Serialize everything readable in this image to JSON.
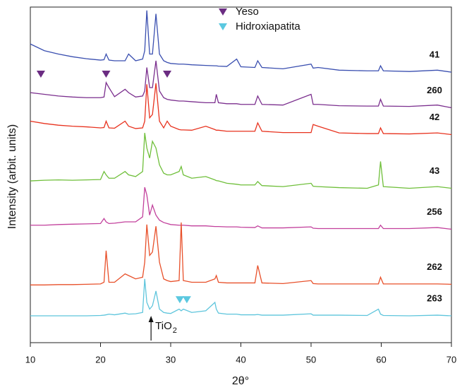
{
  "chart_data": {
    "type": "line",
    "xlabel": "2θ°",
    "ylabel": "Intensity (arbit. units)",
    "xlim": [
      10,
      70
    ],
    "xticks": [
      10,
      20,
      30,
      40,
      50,
      60,
      70
    ],
    "ylim": [
      0,
      100
    ],
    "x": [
      10,
      12,
      14,
      16,
      18,
      20,
      20.5,
      20.8,
      21.2,
      22,
      23.5,
      24,
      25,
      26,
      26.3,
      26.6,
      27,
      27.4,
      27.9,
      28.4,
      29,
      29.5,
      30,
      31.2,
      31.5,
      31.8,
      33,
      35,
      36.3,
      36.5,
      36.8,
      38,
      39.4,
      40,
      42,
      42.4,
      43,
      46,
      50,
      50.3,
      51,
      54,
      58,
      59.6,
      59.9,
      60.3,
      64,
      68,
      70
    ],
    "series": [
      {
        "name": "41",
        "color": "#3a4fb0",
        "values": [
          89,
          87,
          86,
          85.2,
          84.6,
          84.2,
          84.3,
          86,
          84.2,
          84,
          84,
          86,
          84,
          84.5,
          87,
          99,
          86,
          86,
          98,
          86,
          84,
          83.5,
          83.2,
          83,
          83,
          83,
          82.8,
          82.6,
          82.5,
          82.5,
          82.4,
          82.3,
          84.5,
          82.2,
          82,
          84,
          82,
          81.6,
          83,
          81.8,
          82,
          81.2,
          81,
          81,
          82.5,
          81,
          80.8,
          81.2,
          80.6
        ]
      },
      {
        "name": "260",
        "color": "#7b2f8e",
        "values": [
          74.5,
          74,
          73.5,
          73.2,
          73,
          73,
          73.2,
          77.5,
          76,
          73.3,
          75.5,
          74.5,
          73.2,
          73.5,
          75,
          82,
          76,
          76,
          84,
          75,
          73,
          72.5,
          72.3,
          72,
          72,
          72,
          71.8,
          71.5,
          71.5,
          74,
          71.5,
          71.2,
          71.2,
          71,
          71,
          73.5,
          71,
          70.8,
          74,
          71,
          71,
          70.6,
          70.5,
          70.5,
          72.5,
          70.5,
          70.4,
          70.8,
          70
        ]
      },
      {
        "name": "42",
        "color": "#e8321e",
        "values": [
          66,
          65.3,
          64.8,
          64.5,
          64.3,
          64,
          64.1,
          66,
          64,
          63.9,
          66,
          64.5,
          63.8,
          64,
          66,
          77,
          67,
          68,
          77.3,
          66,
          64,
          66,
          64.5,
          63.5,
          63.4,
          63.4,
          63.3,
          64.5,
          63.5,
          63.3,
          63.3,
          63,
          63,
          63,
          63,
          65.5,
          63,
          62.6,
          62.6,
          65,
          64.5,
          62.5,
          62.3,
          62.3,
          64,
          62.3,
          62.2,
          62.5,
          62
        ]
      },
      {
        "name": "43",
        "color": "#6fbf3a",
        "values": [
          48.2,
          48.4,
          48.5,
          48.4,
          48.5,
          48.6,
          51,
          50,
          49,
          49,
          51,
          50,
          49.5,
          51,
          62.5,
          58,
          55,
          60,
          58,
          53,
          50.5,
          50,
          50,
          51,
          52.5,
          50,
          49,
          49.5,
          48.5,
          48.3,
          48.2,
          47.5,
          47.2,
          47,
          47,
          48,
          46.8,
          46.5,
          47.5,
          46.6,
          46.5,
          46.2,
          46,
          47,
          54,
          46.5,
          46,
          46.5,
          46
        ]
      },
      {
        "name": "256",
        "color": "#c2409c",
        "values": [
          35,
          35,
          35.2,
          35.3,
          35.4,
          35.5,
          37,
          36,
          35.5,
          35.6,
          36,
          36,
          36,
          37.5,
          46.3,
          44,
          38,
          41,
          38,
          36.5,
          35.8,
          35.5,
          35.2,
          35,
          35,
          35,
          34.8,
          34.8,
          34.6,
          34.6,
          34.6,
          34.5,
          34.5,
          34.4,
          34.3,
          34.8,
          34.2,
          34.2,
          34.5,
          34.1,
          34,
          34,
          34,
          34,
          35,
          34,
          34,
          34.3,
          33.8
        ]
      },
      {
        "name": "262",
        "color": "#e8502a",
        "values": [
          17.2,
          17.2,
          17.3,
          17.3,
          17.4,
          17.5,
          18,
          27.4,
          18,
          18,
          20.5,
          20,
          19,
          19.5,
          24,
          35.2,
          26,
          27,
          34.7,
          24,
          19,
          18.5,
          18.2,
          18.5,
          35.8,
          18.5,
          18,
          18,
          19,
          20,
          18,
          17.8,
          17.8,
          17.8,
          17.8,
          23,
          17.8,
          17.6,
          18.5,
          17.6,
          17.5,
          17.5,
          17.5,
          17.5,
          19.5,
          17.5,
          17.5,
          17.5,
          17.4
        ]
      },
      {
        "name": "263",
        "color": "#5ec5dc",
        "values": [
          8,
          8,
          8,
          8,
          8,
          8.1,
          8.2,
          8.3,
          8.5,
          8.3,
          8.8,
          8.5,
          8.6,
          9,
          19,
          12,
          10,
          11,
          15.4,
          10,
          9,
          8.8,
          8.7,
          10,
          9.5,
          10,
          9,
          9.5,
          12,
          10,
          8.8,
          8.5,
          8.5,
          8.3,
          8.3,
          8.4,
          8.2,
          8.2,
          8.6,
          8.2,
          8.2,
          8.2,
          8.1,
          10,
          8.5,
          8.1,
          8,
          8.2,
          8
        ]
      }
    ],
    "markers": [
      {
        "name": "Yeso",
        "color": "#6b2c82",
        "x": [
          11.5,
          20.8,
          29.5
        ],
        "y": [
          80,
          80,
          80
        ]
      },
      {
        "name": "Hidroxiapatita",
        "color": "#5bc8e0",
        "x": [
          31.3,
          32.3
        ],
        "y": [
          12.8,
          12.8
        ]
      }
    ],
    "annotations": [
      {
        "text": "TiO",
        "subscript": "2",
        "x": 27.2
      }
    ]
  }
}
